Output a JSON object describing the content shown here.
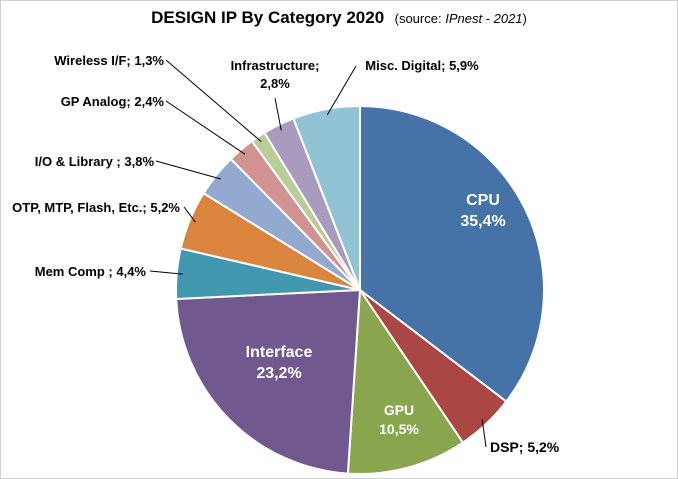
{
  "chart_data": {
    "type": "pie",
    "title": "DESIGN IP By Category 2020",
    "source_prefix": "(source: ",
    "source_name": "IPnest - 2021",
    "source_suffix": ")",
    "slices": [
      {
        "label": "CPU",
        "value": 35.4,
        "value_text": "35,4%",
        "color": "#4572a7",
        "label_style": "inside"
      },
      {
        "label": "DSP",
        "value": 5.2,
        "value_text": "5,2%",
        "color": "#aa4643",
        "label_style": "outside",
        "label_text": "DSP;  5,2%"
      },
      {
        "label": "GPU",
        "value": 10.5,
        "value_text": "10,5%",
        "color": "#89a54e",
        "label_style": "inside"
      },
      {
        "label": "Interface",
        "value": 23.2,
        "value_text": "23,2%",
        "color": "#71588f",
        "label_style": "inside"
      },
      {
        "label": "Mem Comp",
        "value": 4.4,
        "value_text": "4,4%",
        "color": "#4198af",
        "label_style": "outside",
        "label_text": "Mem Comp ; 4,4%"
      },
      {
        "label": "OTP, MTP, Flash, Etc.",
        "value": 5.2,
        "value_text": "5,2%",
        "color": "#db843d",
        "label_style": "outside",
        "label_text": "OTP, MTP, Flash, Etc.; 5,2%"
      },
      {
        "label": "I/O & Library",
        "value": 3.8,
        "value_text": "3,8%",
        "color": "#93a9cf",
        "label_style": "outside",
        "label_text": "I/O & Library ; 3,8%"
      },
      {
        "label": "GP Analog",
        "value": 2.4,
        "value_text": "2,4%",
        "color": "#d19392",
        "label_style": "outside",
        "label_text": "GP Analog; 2,4%"
      },
      {
        "label": "Wireless I/F",
        "value": 1.3,
        "value_text": "1,3%",
        "color": "#b9cd96",
        "label_style": "outside",
        "label_text": "Wireless I/F; 1,3%"
      },
      {
        "label": "Infrastructure",
        "value": 2.8,
        "value_text": "2,8%",
        "color": "#a99bbd",
        "label_style": "outside",
        "label_text": "Infrastructure;",
        "label_text2": "2,8%"
      },
      {
        "label": "Misc. Digital",
        "value": 5.9,
        "value_text": "5,9%",
        "color": "#92c3d4",
        "label_style": "outside",
        "label_text": "Misc. Digital; 5,9%"
      }
    ]
  }
}
